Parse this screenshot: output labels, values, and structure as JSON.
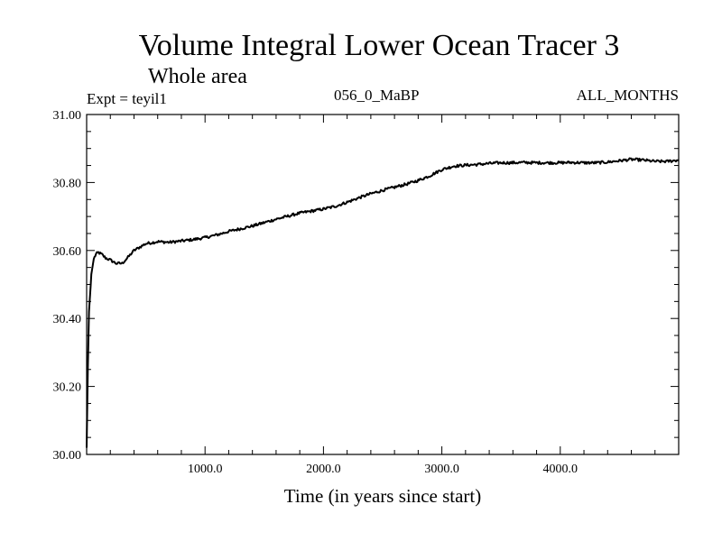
{
  "chart_data": {
    "type": "line",
    "title": "Volume Integral Lower Ocean Tracer 3",
    "subtitle": "Whole area",
    "experiment_label": "Expt = teyil1",
    "run_label": "056_0_MaBP",
    "months_label": "ALL_MONTHS",
    "xlabel": "Time (in years since start)",
    "ylabel": "",
    "xlim": [
      0,
      5000
    ],
    "ylim": [
      30.0,
      31.0
    ],
    "x_ticks": [
      1000,
      2000,
      3000,
      4000
    ],
    "x_tick_labels": [
      "1000.0",
      "2000.0",
      "3000.0",
      "4000.0"
    ],
    "y_ticks": [
      30.0,
      30.2,
      30.4,
      30.6,
      30.8,
      31.0
    ],
    "y_tick_labels": [
      "30.00",
      "30.20",
      "30.40",
      "30.60",
      "30.80",
      "31.00"
    ],
    "grid": false,
    "series": [
      {
        "name": "Lower Ocean Tracer 3",
        "color": "#000000",
        "x": [
          0,
          10,
          20,
          40,
          60,
          80,
          100,
          130,
          160,
          200,
          250,
          300,
          350,
          400,
          450,
          500,
          600,
          700,
          800,
          900,
          1000,
          1100,
          1200,
          1300,
          1400,
          1500,
          1600,
          1700,
          1800,
          1900,
          2000,
          2100,
          2200,
          2300,
          2400,
          2500,
          2600,
          2700,
          2800,
          2900,
          3000,
          3100,
          3200,
          3300,
          3400,
          3500,
          3600,
          3700,
          3800,
          3900,
          4000,
          4100,
          4200,
          4300,
          4400,
          4500,
          4600,
          4700,
          4800,
          4900,
          5000
        ],
        "y": [
          30.02,
          30.25,
          30.42,
          30.53,
          30.575,
          30.59,
          30.594,
          30.588,
          30.578,
          30.572,
          30.562,
          30.562,
          30.58,
          30.6,
          30.61,
          30.62,
          30.626,
          30.624,
          30.628,
          30.632,
          30.638,
          30.646,
          30.656,
          30.664,
          30.672,
          30.682,
          30.692,
          30.701,
          30.71,
          30.716,
          30.722,
          30.73,
          30.742,
          30.755,
          30.767,
          30.777,
          30.786,
          30.795,
          30.806,
          30.82,
          30.838,
          30.848,
          30.851,
          30.853,
          30.856,
          30.858,
          30.858,
          30.859,
          30.858,
          30.858,
          30.858,
          30.859,
          30.858,
          30.858,
          30.86,
          30.864,
          30.868,
          30.866,
          30.862,
          30.862,
          30.866
        ]
      }
    ]
  }
}
